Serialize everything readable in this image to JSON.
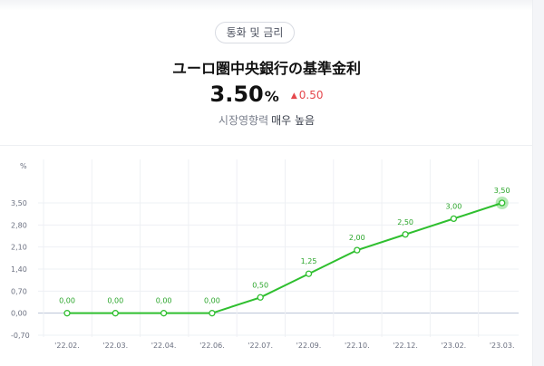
{
  "header": {
    "category": "통화 및 금리",
    "title": "ユーロ圏中央銀行の基準金利",
    "rate_value": "3.50",
    "rate_unit": "%",
    "change_icon": "triangle-up-icon",
    "change_value": "0.50",
    "impact_label": "시장영향력",
    "impact_level": "매우 높음"
  },
  "colors": {
    "line": "#2fbf2f",
    "label": "#2aa52a",
    "change_up": "#e5484d",
    "zero_line": "#b9c3d6",
    "grid": "#eef0f4"
  },
  "chart_data": {
    "type": "line",
    "y_unit_label": "%",
    "ylim": [
      -0.7,
      3.5
    ],
    "y_ticks": [
      3.5,
      2.8,
      2.1,
      1.4,
      0.7,
      0.0,
      -0.7
    ],
    "y_tick_labels": [
      "3,50",
      "2,80",
      "2,10",
      "1,40",
      "0,70",
      "0,00",
      "-0,70"
    ],
    "categories": [
      "'22.02.",
      "'22.03.",
      "'22.04.",
      "'22.06.",
      "'22.07.",
      "'22.09.",
      "'22.10.",
      "'22.12.",
      "'23.02.",
      "'23.03."
    ],
    "values": [
      0.0,
      0.0,
      0.0,
      0.0,
      0.5,
      1.25,
      2.0,
      2.5,
      3.0,
      3.5
    ],
    "point_labels": [
      "0,00",
      "0,00",
      "0,00",
      "0,00",
      "0,50",
      "1,25",
      "2,00",
      "2,50",
      "3,00",
      "3,50"
    ],
    "grid": true,
    "highlight_last": true
  }
}
